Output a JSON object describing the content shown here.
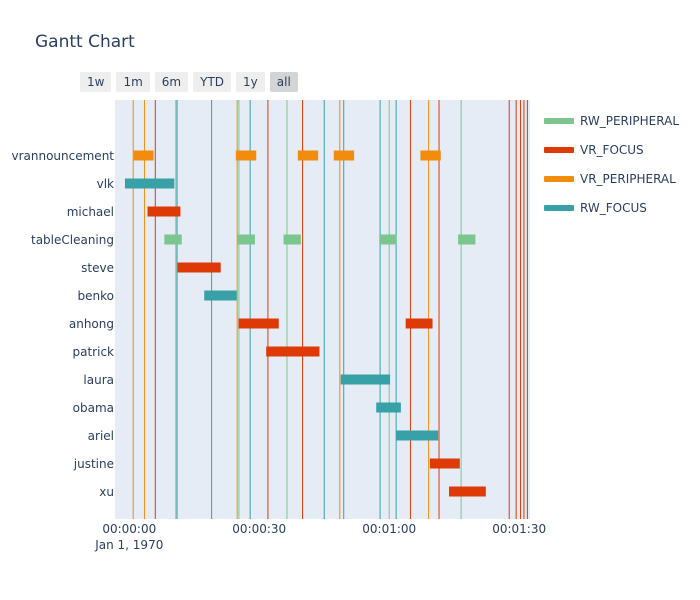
{
  "chart_data": {
    "type": "gantt",
    "title": "Gantt Chart",
    "range_buttons": [
      {
        "label": "1w",
        "active": false
      },
      {
        "label": "1m",
        "active": false
      },
      {
        "label": "6m",
        "active": false
      },
      {
        "label": "YTD",
        "active": false
      },
      {
        "label": "1y",
        "active": false
      },
      {
        "label": "all",
        "active": true
      }
    ],
    "x_range_seconds": [
      -3.3,
      92.5
    ],
    "x_ticks": [
      {
        "value": 0,
        "label": "00:00:00",
        "sublabel": "Jan 1, 1970"
      },
      {
        "value": 30,
        "label": "00:00:30"
      },
      {
        "value": 60,
        "label": "00:01:00"
      },
      {
        "value": 90,
        "label": "00:01:30"
      }
    ],
    "categories": [
      "vrannouncement",
      "vlk",
      "michael",
      "tableCleaning",
      "steve",
      "benko",
      "anhong",
      "patrick",
      "laura",
      "obama",
      "ariel",
      "justine",
      "xu"
    ],
    "series": [
      {
        "name": "RW_PERIPHERAL",
        "color": "#7ac68e"
      },
      {
        "name": "VR_FOCUS",
        "color": "#dd3a07"
      },
      {
        "name": "VR_PERIPHERAL",
        "color": "#f18c0f"
      },
      {
        "name": "RW_FOCUS",
        "color": "#38a1a7"
      }
    ],
    "tasks": [
      {
        "task": "vrannouncement",
        "start": 1.0,
        "end": 5.6,
        "series": "VR_PERIPHERAL"
      },
      {
        "task": "vrannouncement",
        "start": 24.6,
        "end": 29.3,
        "series": "VR_PERIPHERAL"
      },
      {
        "task": "vrannouncement",
        "start": 38.9,
        "end": 43.6,
        "series": "VR_PERIPHERAL"
      },
      {
        "task": "vrannouncement",
        "start": 47.2,
        "end": 51.9,
        "series": "VR_PERIPHERAL"
      },
      {
        "task": "vrannouncement",
        "start": 67.2,
        "end": 71.9,
        "series": "VR_PERIPHERAL"
      },
      {
        "task": "vlk",
        "start": -1.0,
        "end": 10.4,
        "series": "RW_FOCUS"
      },
      {
        "task": "michael",
        "start": 4.2,
        "end": 11.8,
        "series": "VR_FOCUS"
      },
      {
        "task": "tableCleaning",
        "start": 8.1,
        "end": 12.1,
        "series": "RW_PERIPHERAL"
      },
      {
        "task": "tableCleaning",
        "start": 25.0,
        "end": 29.0,
        "series": "RW_PERIPHERAL"
      },
      {
        "task": "tableCleaning",
        "start": 35.6,
        "end": 39.6,
        "series": "RW_PERIPHERAL"
      },
      {
        "task": "tableCleaning",
        "start": 57.7,
        "end": 61.7,
        "series": "RW_PERIPHERAL"
      },
      {
        "task": "tableCleaning",
        "start": 75.9,
        "end": 79.9,
        "series": "RW_PERIPHERAL"
      },
      {
        "task": "steve",
        "start": 11.1,
        "end": 21.1,
        "series": "VR_FOCUS"
      },
      {
        "task": "benko",
        "start": 17.3,
        "end": 24.8,
        "series": "RW_FOCUS"
      },
      {
        "task": "anhong",
        "start": 25.2,
        "end": 34.5,
        "series": "VR_FOCUS"
      },
      {
        "task": "anhong",
        "start": 63.8,
        "end": 70.0,
        "series": "VR_FOCUS"
      },
      {
        "task": "patrick",
        "start": 31.6,
        "end": 43.9,
        "series": "VR_FOCUS"
      },
      {
        "task": "laura",
        "start": 48.8,
        "end": 60.2,
        "series": "RW_FOCUS"
      },
      {
        "task": "obama",
        "start": 57.0,
        "end": 62.7,
        "series": "RW_FOCUS"
      },
      {
        "task": "ariel",
        "start": 61.6,
        "end": 71.3,
        "series": "RW_FOCUS"
      },
      {
        "task": "justine",
        "start": 69.4,
        "end": 76.3,
        "series": "VR_FOCUS"
      },
      {
        "task": "xu",
        "start": 73.8,
        "end": 82.3,
        "series": "VR_FOCUS"
      }
    ],
    "vertical_lines": [
      {
        "x": 0.9,
        "series": "VR_PERIPHERAL"
      },
      {
        "x": 3.5,
        "series": "VR_PERIPHERAL"
      },
      {
        "x": 6.0,
        "series": "VR_FOCUS"
      },
      {
        "x": 10.8,
        "series": "RW_FOCUS"
      },
      {
        "x": 11.1,
        "series": "RW_PERIPHERAL"
      },
      {
        "x": 19.0,
        "series": "RW_FOCUS"
      },
      {
        "x": 24.9,
        "series": "VR_PERIPHERAL"
      },
      {
        "x": 25.3,
        "series": "RW_PERIPHERAL"
      },
      {
        "x": 27.9,
        "series": "RW_FOCUS"
      },
      {
        "x": 32.0,
        "series": "VR_FOCUS"
      },
      {
        "x": 36.4,
        "series": "RW_PERIPHERAL"
      },
      {
        "x": 40.0,
        "series": "VR_FOCUS"
      },
      {
        "x": 45.0,
        "series": "RW_FOCUS"
      },
      {
        "x": 48.6,
        "series": "VR_PERIPHERAL"
      },
      {
        "x": 49.5,
        "series": "RW_FOCUS"
      },
      {
        "x": 57.9,
        "series": "RW_FOCUS"
      },
      {
        "x": 60.0,
        "series": "RW_PERIPHERAL"
      },
      {
        "x": 61.6,
        "series": "RW_FOCUS"
      },
      {
        "x": 64.9,
        "series": "VR_FOCUS"
      },
      {
        "x": 69.1,
        "series": "VR_PERIPHERAL"
      },
      {
        "x": 71.5,
        "series": "VR_FOCUS"
      },
      {
        "x": 76.6,
        "series": "RW_PERIPHERAL"
      },
      {
        "x": 87.7,
        "series": "VR_FOCUS"
      },
      {
        "x": 89.3,
        "series": "VR_FOCUS"
      },
      {
        "x": 90.3,
        "series": "VR_FOCUS"
      },
      {
        "x": 91.1,
        "series": "VR_FOCUS"
      },
      {
        "x": 91.9,
        "series": "VR_FOCUS"
      }
    ]
  }
}
